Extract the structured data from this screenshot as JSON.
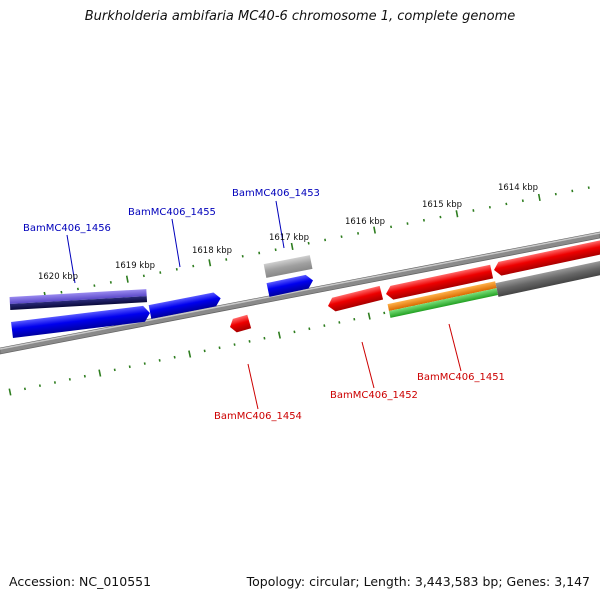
{
  "title": "Burkholderia ambifaria MC40-6 chromosome 1, complete genome",
  "footer": {
    "accession": "Accession: NC_010551",
    "stats": "Topology: circular; Length: 3,443,583 bp; Genes: 3,147"
  },
  "colors": {
    "tick": "#2e7d1f",
    "backbone": "#8a8a8a",
    "forward_label": "#0000bb",
    "reverse_label": "#cc0000"
  },
  "tick_labels": [
    "1614 kbp",
    "1615 kbp",
    "1616 kbp",
    "1617 kbp",
    "1618 kbp",
    "1619 kbp",
    "1620 kbp"
  ],
  "genes": {
    "forward": [
      "BamMC406_1453",
      "BamMC406_1455",
      "BamMC406_1456"
    ],
    "reverse": [
      "BamMC406_1451",
      "BamMC406_1452",
      "BamMC406_1454"
    ]
  }
}
